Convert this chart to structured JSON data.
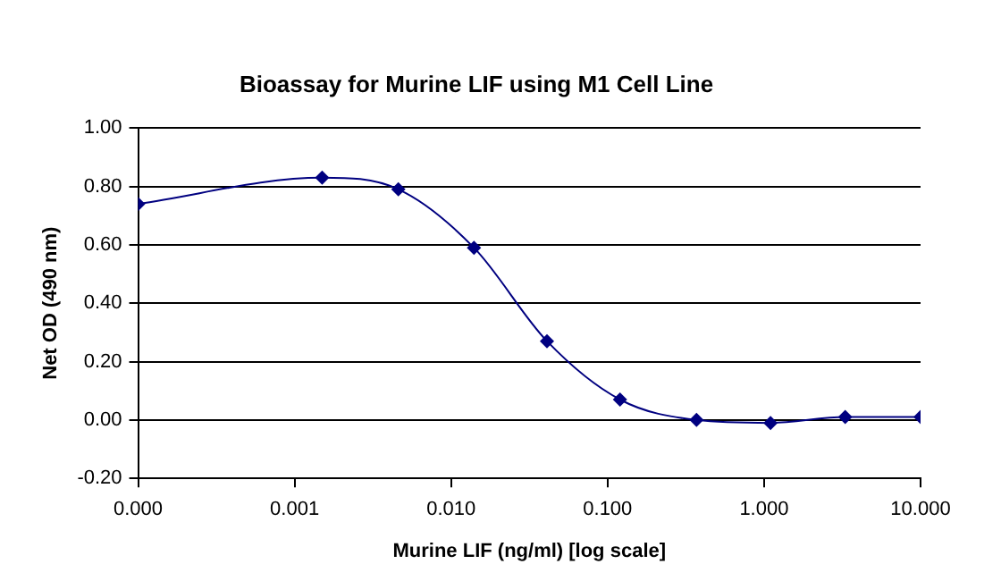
{
  "chart_data": {
    "type": "line",
    "title": "Bioassay for Murine LIF using M1 Cell Line",
    "xlabel": "Murine LIF (ng/ml) [log scale]",
    "ylabel": "Net OD (490 nm)",
    "x": [
      0.0001,
      0.0015,
      0.0046,
      0.014,
      0.041,
      0.12,
      0.37,
      1.1,
      3.3,
      10
    ],
    "series": [
      {
        "color": "#000080",
        "values": [
          0.74,
          0.83,
          0.79,
          0.59,
          0.27,
          0.07,
          0.0,
          -0.01,
          0.01,
          0.01
        ]
      }
    ],
    "log": "x",
    "xlim": [
      0.0001,
      10
    ],
    "xticks": [
      {
        "value": 0.0001,
        "label": "0.000"
      },
      {
        "value": 0.001,
        "label": "0.001"
      },
      {
        "value": 0.01,
        "label": "0.010"
      },
      {
        "value": 0.1,
        "label": "0.100"
      },
      {
        "value": 1,
        "label": "1.000"
      },
      {
        "value": 10,
        "label": "10.000"
      }
    ],
    "ylim": [
      -0.2,
      1
    ],
    "yticks": [
      {
        "value": -0.2,
        "label": "-0.20"
      },
      {
        "value": 0,
        "label": "0.00"
      },
      {
        "value": 0.2,
        "label": "0.20"
      },
      {
        "value": 0.4,
        "label": "0.40"
      },
      {
        "value": 0.6,
        "label": "0.60"
      },
      {
        "value": 0.8,
        "label": "0.80"
      },
      {
        "value": 1,
        "label": "1.00"
      }
    ],
    "grid": "y",
    "legend": false,
    "marker": "diamond",
    "line_style": "solid"
  }
}
